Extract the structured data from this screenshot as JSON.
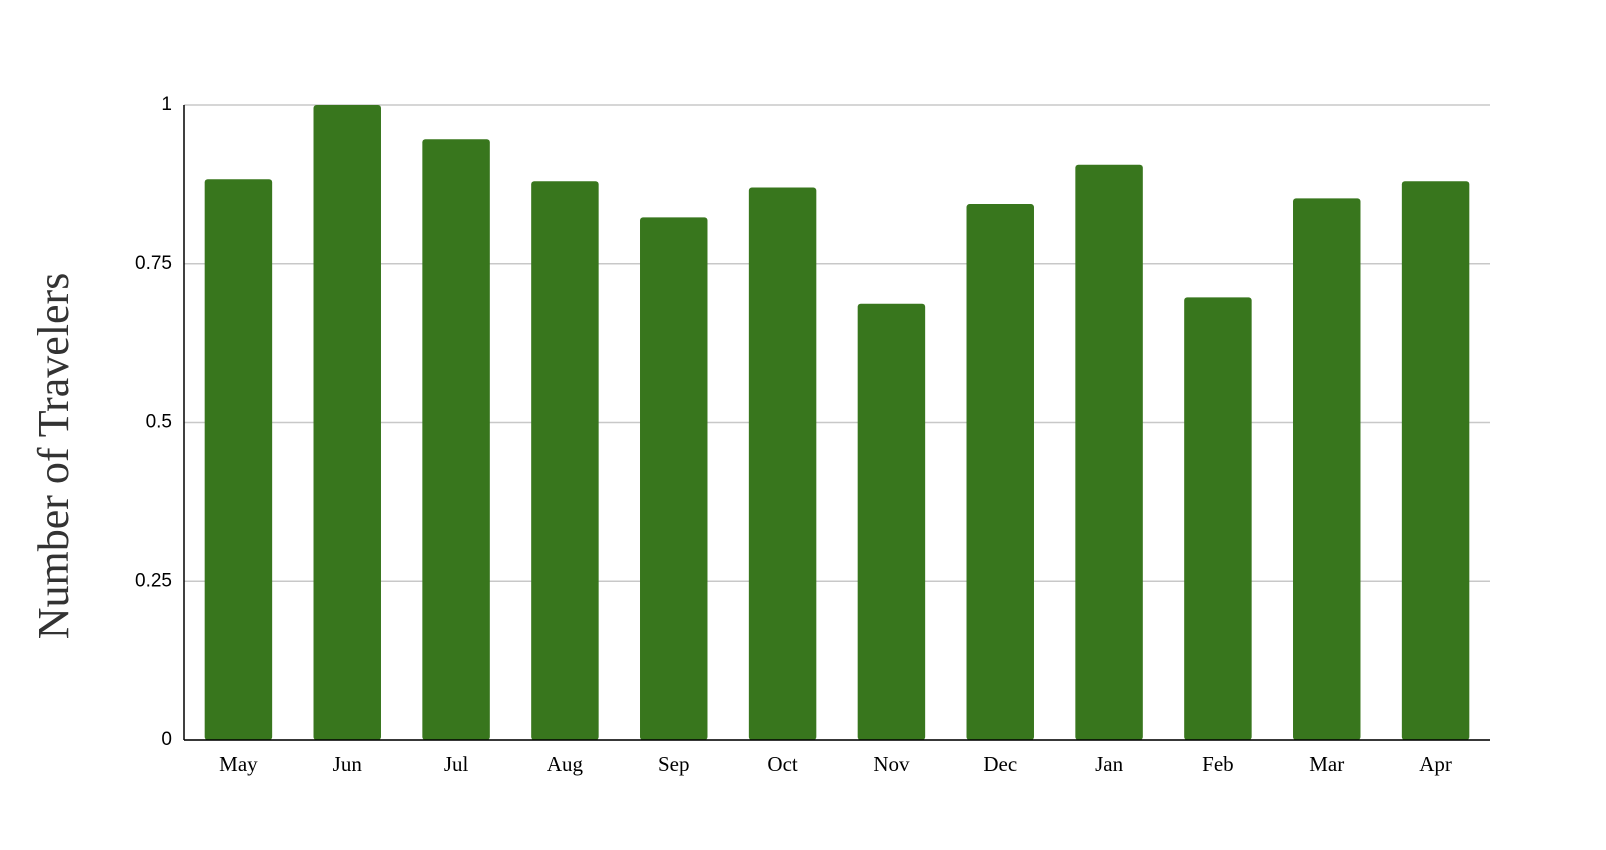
{
  "chart_data": {
    "type": "bar",
    "y_label": "Number of Travelers",
    "categories": [
      "May",
      "Jun",
      "Jul",
      "Aug",
      "Sep",
      "Oct",
      "Nov",
      "Dec",
      "Jan",
      "Feb",
      "Mar",
      "Apr"
    ],
    "values": [
      0.883,
      1.0,
      0.946,
      0.88,
      0.823,
      0.87,
      0.687,
      0.844,
      0.906,
      0.697,
      0.853,
      0.88
    ],
    "color": "#38761d",
    "ylim": [
      0,
      1
    ],
    "yticks": [
      0,
      0.25,
      0.5,
      0.75,
      1
    ],
    "grid": true
  }
}
